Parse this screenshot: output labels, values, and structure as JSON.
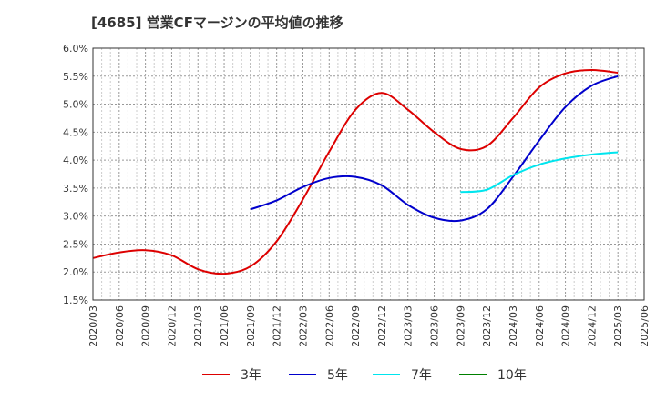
{
  "chart_data": {
    "type": "line",
    "title": "[4685]  営業CFマージンの平均値の推移",
    "xlabel": "",
    "ylabel": "",
    "ylim": [
      1.5,
      6.0
    ],
    "yticks": [
      "1.5%",
      "2.0%",
      "2.5%",
      "3.0%",
      "3.5%",
      "4.0%",
      "4.5%",
      "5.0%",
      "5.5%",
      "6.0%"
    ],
    "yvals": [
      1.5,
      2.0,
      2.5,
      3.0,
      3.5,
      4.0,
      4.5,
      5.0,
      5.5,
      6.0
    ],
    "xticks": [
      "2020/03",
      "2020/06",
      "2020/09",
      "2020/12",
      "2021/03",
      "2021/06",
      "2021/09",
      "2021/12",
      "2022/03",
      "2022/06",
      "2022/09",
      "2022/12",
      "2023/03",
      "2023/06",
      "2023/09",
      "2023/12",
      "2024/03",
      "2024/06",
      "2024/09",
      "2024/12",
      "2025/03",
      "2025/06"
    ],
    "grid": true,
    "legend_position": "bottom",
    "series": [
      {
        "name": "3年",
        "color": "#dd0000",
        "x": [
          "2020/03",
          "2020/06",
          "2020/09",
          "2020/12",
          "2021/03",
          "2021/06",
          "2021/09",
          "2021/12",
          "2022/03",
          "2022/06",
          "2022/09",
          "2022/12",
          "2023/03",
          "2023/06",
          "2023/09",
          "2023/12",
          "2024/03",
          "2024/06",
          "2024/09",
          "2024/12",
          "2025/03"
        ],
        "values": [
          2.25,
          2.35,
          2.39,
          2.3,
          2.05,
          1.97,
          2.1,
          2.55,
          3.3,
          4.15,
          4.9,
          5.2,
          4.9,
          4.5,
          4.2,
          4.25,
          4.75,
          5.3,
          5.55,
          5.61,
          5.56
        ]
      },
      {
        "name": "5年",
        "color": "#0000cc",
        "x": [
          "2021/09",
          "2021/12",
          "2022/03",
          "2022/06",
          "2022/09",
          "2022/12",
          "2023/03",
          "2023/06",
          "2023/09",
          "2023/12",
          "2024/03",
          "2024/06",
          "2024/09",
          "2024/12",
          "2025/03"
        ],
        "values": [
          3.12,
          3.28,
          3.52,
          3.68,
          3.7,
          3.55,
          3.2,
          2.97,
          2.92,
          3.12,
          3.7,
          4.35,
          4.95,
          5.33,
          5.5
        ]
      },
      {
        "name": "7年",
        "color": "#00e5ee",
        "x": [
          "2023/09",
          "2023/12",
          "2024/03",
          "2024/06",
          "2024/09",
          "2024/12",
          "2025/03"
        ],
        "values": [
          3.43,
          3.47,
          3.73,
          3.92,
          4.03,
          4.1,
          4.14
        ]
      },
      {
        "name": "10年",
        "color": "#008000",
        "x": [],
        "values": []
      }
    ]
  }
}
